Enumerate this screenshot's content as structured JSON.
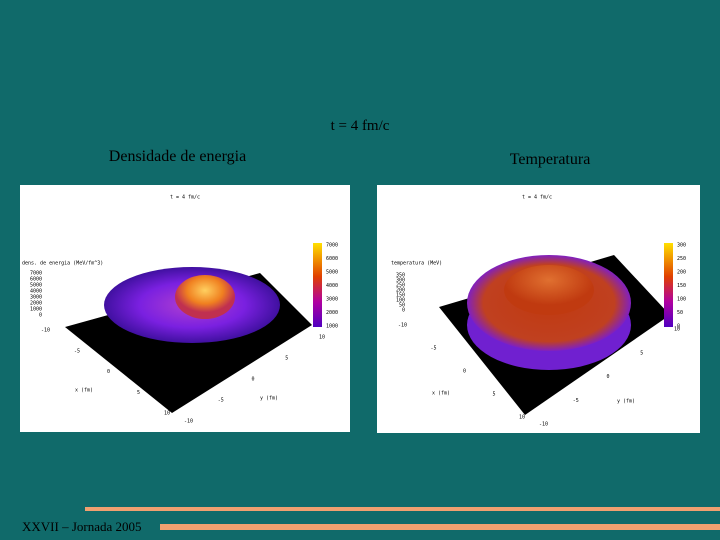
{
  "slide": {
    "title": "t = 4 fm/c",
    "footer": "XXVII – Jornada 2005",
    "panels": [
      {
        "heading": "Densidade de energia",
        "plot": {
          "title": "t = 4 fm/c",
          "zlabel": "dens. de energia (MeV/fm^3)",
          "zticks": [
            7000,
            6000,
            5000,
            4000,
            3000,
            2000,
            1000,
            0
          ],
          "colorbar_ticks": [
            7000,
            6000,
            5000,
            4000,
            3000,
            2000,
            1000
          ],
          "xlabel": "x (fm)",
          "ylabel": "y (fm)",
          "xticks": [
            -10,
            -5,
            0,
            5,
            10
          ],
          "yticks": [
            -10,
            -5,
            0,
            5,
            10
          ]
        }
      },
      {
        "heading": "Temperatura",
        "plot": {
          "title": "t = 4 fm/c",
          "zlabel": "temperatura (MeV)",
          "zticks": [
            350,
            300,
            250,
            200,
            150,
            100,
            50,
            0
          ],
          "colorbar_ticks": [
            300,
            250,
            200,
            150,
            100,
            50,
            0
          ],
          "xlabel": "x (fm)",
          "ylabel": "y (fm)",
          "xticks": [
            -10,
            -5,
            0,
            5,
            10
          ],
          "yticks": [
            -10,
            -5,
            0,
            5,
            10
          ]
        }
      }
    ]
  }
}
